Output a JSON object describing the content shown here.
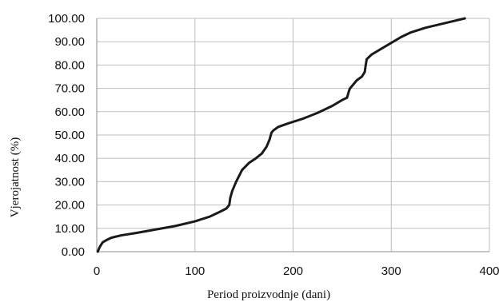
{
  "chart_data": {
    "type": "line",
    "title": "",
    "xlabel": "Period proizvodnje (dani)",
    "ylabel": "Vjerojatnost (%)",
    "xlim": [
      0,
      400
    ],
    "ylim": [
      0,
      100
    ],
    "xticks": [
      0,
      100,
      200,
      300,
      400
    ],
    "yticks": [
      0,
      10,
      20,
      30,
      40,
      50,
      60,
      70,
      80,
      90,
      100
    ],
    "xtick_labels": [
      "0",
      "100",
      "200",
      "300",
      "400"
    ],
    "ytick_labels": [
      "0.00",
      "10.00",
      "20.00",
      "30.00",
      "40.00",
      "50.00",
      "60.00",
      "70.00",
      "80.00",
      "90.00",
      "100.00"
    ],
    "grid": true,
    "legend": "none",
    "series": [
      {
        "color": "#1a1a1a",
        "x": [
          1,
          3,
          6,
          10,
          15,
          25,
          40,
          60,
          80,
          100,
          115,
          125,
          132,
          135,
          136,
          138,
          142,
          148,
          155,
          162,
          168,
          173,
          176,
          178,
          180,
          185,
          195,
          210,
          225,
          240,
          250,
          255,
          257,
          258,
          260,
          265,
          270,
          273,
          274,
          275,
          280,
          290,
          300,
          310,
          320,
          335,
          350,
          365,
          375
        ],
        "y": [
          0,
          2,
          4,
          5,
          6,
          7,
          8,
          9.5,
          11,
          13,
          15,
          17,
          18.5,
          20,
          23,
          26,
          30,
          35,
          38,
          40,
          42,
          45,
          48,
          51,
          52,
          53.5,
          55,
          57,
          59.5,
          62.5,
          65,
          66,
          69,
          70,
          71,
          73.5,
          75,
          77,
          80,
          82.5,
          84.5,
          87,
          89.5,
          92,
          94,
          96,
          97.5,
          99,
          100
        ]
      }
    ]
  }
}
